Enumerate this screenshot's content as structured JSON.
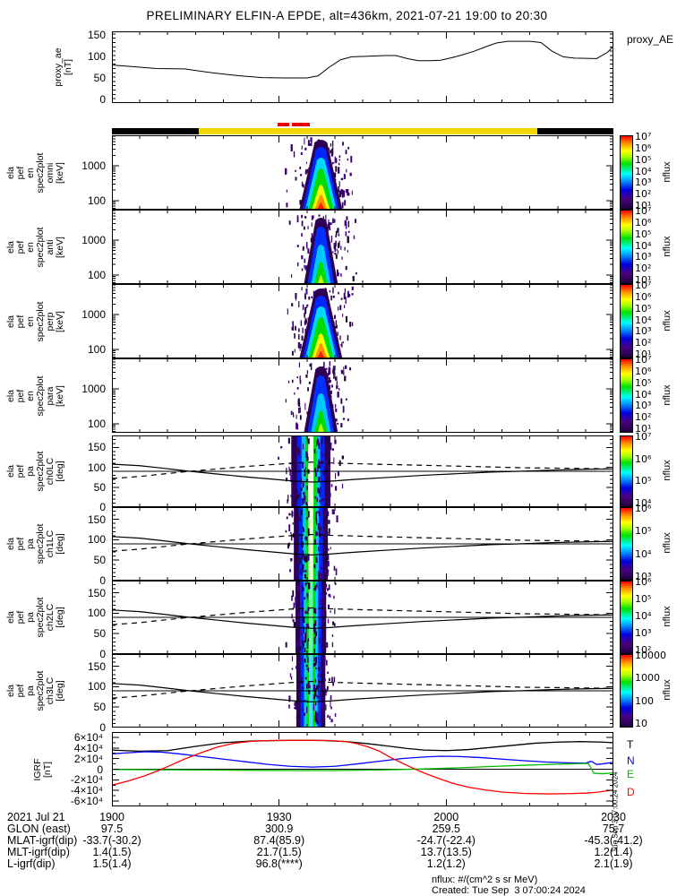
{
  "title": "PRELIMINARY ELFIN-A EPDE, alt=436km, 2021-07-21 19:00 to 20:30",
  "proxy": {
    "ylabel_lines": [
      "proxy_ae",
      "[nT]"
    ],
    "right_label": "proxy_AE",
    "ytick_labels": [
      "150",
      "100",
      "50",
      "0"
    ],
    "ytick_values": [
      150,
      100,
      50,
      0
    ]
  },
  "spectro_panels": [
    {
      "id": "en-omni",
      "label_lines": [
        "ela",
        "pef",
        "en",
        "spec2plot",
        "omni",
        "[keV]"
      ],
      "type": "energy",
      "strength": "strong",
      "ytick_labels": [
        "1000",
        "100"
      ],
      "colorbar_ticks": [
        "10⁷",
        "10⁶",
        "10⁵",
        "10⁴",
        "10³",
        "10²",
        "10¹"
      ],
      "colorbar_label": "nflux"
    },
    {
      "id": "en-anti",
      "label_lines": [
        "ela",
        "pef",
        "en",
        "spec2plot",
        "anti",
        "[keV]"
      ],
      "type": "energy",
      "strength": "weak",
      "ytick_labels": [
        "1000",
        "100"
      ],
      "colorbar_ticks": [
        "10⁷",
        "10⁶",
        "10⁵",
        "10⁴",
        "10³",
        "10²",
        "10¹"
      ],
      "colorbar_label": "nflux"
    },
    {
      "id": "en-perp",
      "label_lines": [
        "ela",
        "pef",
        "en",
        "spec2plot",
        "perp",
        "[keV]"
      ],
      "type": "energy",
      "strength": "strong",
      "ytick_labels": [
        "1000",
        "100"
      ],
      "colorbar_ticks": [
        "10⁷",
        "10⁶",
        "10⁵",
        "10⁴",
        "10³",
        "10²",
        "10¹"
      ],
      "colorbar_label": "nflux"
    },
    {
      "id": "en-para",
      "label_lines": [
        "ela",
        "pef",
        "en",
        "spec2plot",
        "para",
        "[keV]"
      ],
      "type": "energy",
      "strength": "weak",
      "ytick_labels": [
        "1000",
        "100"
      ],
      "colorbar_ticks": [
        "10⁷",
        "10⁶",
        "10⁵",
        "10⁴",
        "10³",
        "10²",
        "10¹"
      ],
      "colorbar_label": "nflux"
    },
    {
      "id": "pa-ch0LC",
      "label_lines": [
        "ela",
        "pef",
        "pa",
        "spec2plot",
        "ch0LC",
        "[deg]"
      ],
      "type": "pitch",
      "strength": "strong",
      "ytick_labels": [
        "150",
        "100",
        "50",
        "0"
      ],
      "colorbar_ticks": [
        "10⁷",
        "10⁶",
        "10⁵",
        "10⁴"
      ],
      "colorbar_label": "nflux"
    },
    {
      "id": "pa-ch1LC",
      "label_lines": [
        "ela",
        "pef",
        "pa",
        "spec2plot",
        "ch1LC",
        "[deg]"
      ],
      "type": "pitch",
      "strength": "strong",
      "ytick_labels": [
        "150",
        "100",
        "50",
        "0"
      ],
      "colorbar_ticks": [
        "10⁶",
        "10⁵",
        "10⁴",
        "10³"
      ],
      "colorbar_label": "nflux"
    },
    {
      "id": "pa-ch2LC",
      "label_lines": [
        "ela",
        "pef",
        "pa",
        "spec2plot",
        "ch2LC",
        "[deg]"
      ],
      "type": "pitch",
      "strength": "medium",
      "ytick_labels": [
        "150",
        "100",
        "50",
        "0"
      ],
      "colorbar_ticks": [
        "10⁶",
        "10⁵",
        "10⁴",
        "10³",
        "10²"
      ],
      "colorbar_label": "nflux"
    },
    {
      "id": "pa-ch3LC",
      "label_lines": [
        "ela",
        "pef",
        "pa",
        "spec2plot",
        "ch3LC",
        "[deg]"
      ],
      "type": "pitch",
      "strength": "low",
      "ytick_labels": [
        "150",
        "100",
        "50",
        "0"
      ],
      "colorbar_ticks": [
        "10000",
        "1000",
        "100",
        "10"
      ],
      "colorbar_label": "nflux"
    }
  ],
  "igrf": {
    "ylabel_lines": [
      "IGRF",
      "[nT]"
    ],
    "ytick_labels": [
      "6×10⁴",
      "4×10⁴",
      "2×10⁴",
      "0",
      "-2×10⁴",
      "-4×10⁴",
      "-6×10⁴"
    ],
    "ytick_values_1e4": [
      6,
      4,
      2,
      0,
      -2,
      -4,
      -6
    ],
    "legend": [
      {
        "name": "T",
        "color": "#000000"
      },
      {
        "name": "N",
        "color": "#0000ff"
      },
      {
        "name": "E",
        "color": "#00bb00"
      },
      {
        "name": "D",
        "color": "#ff0000"
      }
    ]
  },
  "xaxis": {
    "date_label": "2021 Jul 21",
    "tick_labels": [
      "1900",
      "1930",
      "2000",
      "2030"
    ],
    "rows": [
      {
        "label": "GLON (east)",
        "values": [
          "97.5",
          "300.9",
          "259.5",
          "75.7"
        ]
      },
      {
        "label": "MLAT-igrf(dip)",
        "values": [
          "-33.7(-30.2)",
          "87.4(85.9)",
          "-24.7(-22.4)",
          "-45.3(-41.2)"
        ]
      },
      {
        "label": "MLT-igrf(dip)",
        "values": [
          "1.4(1.5)",
          "21.7(1.5)",
          "13.7(13.5)",
          "1.2(1.4)"
        ]
      },
      {
        "label": "L-igrf(dip)",
        "values": [
          "1.5(1.4)",
          "96.8(****)",
          "1.2(1.2)",
          "2.1(1.9)"
        ]
      }
    ]
  },
  "footer": {
    "units_note": "nflux: #/(cm^2 s sr MeV)",
    "created": "Created: Tue Sep  3 07:00:24 2024",
    "vertical_date": "Tue Sep  3 07:00:24 2024"
  },
  "chart_data": {
    "proxy_ae": {
      "type": "line",
      "title": "proxy_AE",
      "ylabel": "proxy_ae [nT]",
      "ylim": [
        0,
        150
      ],
      "x_unit": "minutes after 2021-07-21 19:00 UT",
      "points": [
        [
          0,
          80
        ],
        [
          4,
          76
        ],
        [
          8,
          72
        ],
        [
          13,
          71
        ],
        [
          18,
          62
        ],
        [
          23,
          55
        ],
        [
          27,
          51
        ],
        [
          31,
          50
        ],
        [
          35,
          50
        ],
        [
          37,
          55
        ],
        [
          39,
          75
        ],
        [
          41,
          92
        ],
        [
          43,
          99
        ],
        [
          45,
          100
        ],
        [
          47,
          101
        ],
        [
          49,
          102
        ],
        [
          51,
          102
        ],
        [
          53,
          95
        ],
        [
          55,
          90
        ],
        [
          57,
          90
        ],
        [
          59,
          91
        ],
        [
          61,
          97
        ],
        [
          63,
          104
        ],
        [
          65,
          112
        ],
        [
          67,
          122
        ],
        [
          69,
          131
        ],
        [
          71,
          135
        ],
        [
          75,
          135
        ],
        [
          77,
          132
        ],
        [
          79,
          112
        ],
        [
          81,
          99
        ],
        [
          83,
          96
        ],
        [
          87,
          95
        ],
        [
          89,
          110
        ],
        [
          90,
          124
        ]
      ]
    },
    "science_zone_bar": {
      "black_minutes": [
        [
          0,
          15.6
        ],
        [
          76.3,
          90
        ]
      ],
      "yellow_minutes": [
        [
          15.6,
          76.3
        ]
      ],
      "red_marks_minutes": [
        [
          29.7,
          31.8
        ],
        [
          32.3,
          35.5
        ]
      ]
    },
    "energy_spectrograms": {
      "type": "heatmap",
      "panels": [
        "omni",
        "anti",
        "perp",
        "para"
      ],
      "y_unit": "keV",
      "y_range": [
        55,
        7500
      ],
      "y_scale": "log",
      "flux_color_range": [
        10,
        10000000
      ],
      "burst_minutes": [
        33,
        41
      ],
      "burst_center_minutes": 37.5,
      "flux_units": "#/(cm^2 s sr MeV)"
    },
    "pitch_spectrograms": {
      "type": "heatmap",
      "panels": [
        "ch0LC",
        "ch1LC",
        "ch2LC",
        "ch3LC"
      ],
      "y_unit": "deg",
      "y_range": [
        0,
        180
      ],
      "ninety_deg_line": 90,
      "burst_minutes": [
        33,
        40
      ],
      "burst_center_minutes": 35.7,
      "loss_cone_solid_deg": [
        [
          0,
          108
        ],
        [
          5,
          104
        ],
        [
          9,
          98
        ],
        [
          14,
          90
        ],
        [
          19,
          83
        ],
        [
          24,
          76
        ],
        [
          29,
          70
        ],
        [
          33,
          65
        ],
        [
          36,
          63
        ],
        [
          39,
          65
        ],
        [
          44,
          70
        ],
        [
          50,
          75
        ],
        [
          56,
          80
        ],
        [
          62,
          84
        ],
        [
          68,
          88
        ],
        [
          73,
          90
        ],
        [
          79,
          93
        ],
        [
          85,
          95
        ],
        [
          90,
          96
        ]
      ],
      "antiloss_cone_dashed_deg": [
        [
          0,
          72
        ],
        [
          5,
          77
        ],
        [
          9,
          83
        ],
        [
          14,
          90
        ],
        [
          19,
          96
        ],
        [
          24,
          102
        ],
        [
          29,
          107
        ],
        [
          33,
          111
        ],
        [
          36,
          113
        ],
        [
          39,
          111
        ],
        [
          44,
          109
        ],
        [
          50,
          107
        ],
        [
          56,
          105
        ],
        [
          62,
          103
        ],
        [
          68,
          101
        ],
        [
          73,
          99
        ],
        [
          79,
          98
        ],
        [
          85,
          97
        ],
        [
          90,
          96
        ]
      ]
    },
    "igrf": {
      "type": "line",
      "ylabel": "IGRF [nT]",
      "ylim_1e4": [
        -7,
        7
      ],
      "series": [
        {
          "name": "T",
          "color": "#000000",
          "points_1e4": [
            [
              0,
              3.6
            ],
            [
              5,
              3.4
            ],
            [
              10,
              3.5
            ],
            [
              15,
              4.3
            ],
            [
              20,
              5.0
            ],
            [
              25,
              5.3
            ],
            [
              30,
              5.4
            ],
            [
              34,
              5.45
            ],
            [
              38,
              5.4
            ],
            [
              42,
              5.2
            ],
            [
              46,
              4.8
            ],
            [
              50,
              4.3
            ],
            [
              53,
              3.9
            ],
            [
              56,
              3.6
            ],
            [
              60,
              3.5
            ],
            [
              64,
              3.7
            ],
            [
              68,
              4.1
            ],
            [
              72,
              4.5
            ],
            [
              76,
              4.9
            ],
            [
              80,
              5.1
            ],
            [
              84,
              5.2
            ],
            [
              88,
              5.1
            ],
            [
              90,
              5.0
            ]
          ]
        },
        {
          "name": "N",
          "color": "#0000ff",
          "points_1e4": [
            [
              0,
              2.9
            ],
            [
              3,
              3.1
            ],
            [
              6,
              3.3
            ],
            [
              9,
              3.2
            ],
            [
              12,
              2.9
            ],
            [
              16,
              2.4
            ],
            [
              20,
              1.9
            ],
            [
              24,
              1.4
            ],
            [
              28,
              0.9
            ],
            [
              32,
              0.55
            ],
            [
              36,
              0.4
            ],
            [
              40,
              0.55
            ],
            [
              44,
              1.0
            ],
            [
              48,
              1.5
            ],
            [
              52,
              2.0
            ],
            [
              56,
              2.3
            ],
            [
              59,
              2.45
            ],
            [
              62,
              2.4
            ],
            [
              66,
              2.2
            ],
            [
              70,
              1.9
            ],
            [
              74,
              1.6
            ],
            [
              78,
              1.35
            ],
            [
              82,
              1.2
            ],
            [
              85,
              1.15
            ],
            [
              86,
              1.5
            ],
            [
              87,
              0.9
            ],
            [
              88,
              1.0
            ],
            [
              90,
              1.3
            ]
          ]
        },
        {
          "name": "E",
          "color": "#00bb00",
          "points_1e4": [
            [
              0,
              -0.05
            ],
            [
              8,
              -0.1
            ],
            [
              16,
              -0.15
            ],
            [
              24,
              -0.2
            ],
            [
              32,
              -0.25
            ],
            [
              40,
              -0.25
            ],
            [
              48,
              -0.15
            ],
            [
              56,
              0.05
            ],
            [
              62,
              0.25
            ],
            [
              68,
              0.5
            ],
            [
              74,
              0.75
            ],
            [
              80,
              0.95
            ],
            [
              84,
              1.05
            ],
            [
              85.5,
              1.1
            ],
            [
              86.5,
              -0.75
            ],
            [
              88,
              -0.85
            ],
            [
              90,
              -0.7
            ]
          ]
        },
        {
          "name": "D",
          "color": "#ff0000",
          "points_1e4": [
            [
              0,
              -3.0
            ],
            [
              3,
              -2.2
            ],
            [
              6,
              -1.2
            ],
            [
              8,
              -0.4
            ],
            [
              10,
              0.5
            ],
            [
              13,
              1.9
            ],
            [
              16,
              3.1
            ],
            [
              19,
              4.2
            ],
            [
              22,
              4.9
            ],
            [
              25,
              5.25
            ],
            [
              28,
              5.4
            ],
            [
              32,
              5.45
            ],
            [
              36,
              5.45
            ],
            [
              39,
              5.4
            ],
            [
              42,
              5.2
            ],
            [
              44,
              4.8
            ],
            [
              46,
              4.2
            ],
            [
              48,
              3.4
            ],
            [
              50,
              2.2
            ],
            [
              52,
              1.2
            ],
            [
              54,
              0.2
            ],
            [
              56,
              -0.7
            ],
            [
              58,
              -1.5
            ],
            [
              61,
              -2.6
            ],
            [
              64,
              -3.4
            ],
            [
              67,
              -3.9
            ],
            [
              70,
              -4.3
            ],
            [
              74,
              -4.55
            ],
            [
              78,
              -4.65
            ],
            [
              82,
              -4.6
            ],
            [
              85,
              -4.5
            ],
            [
              87,
              -4.35
            ],
            [
              89,
              -4.05
            ],
            [
              90,
              -3.9
            ]
          ]
        }
      ]
    }
  }
}
